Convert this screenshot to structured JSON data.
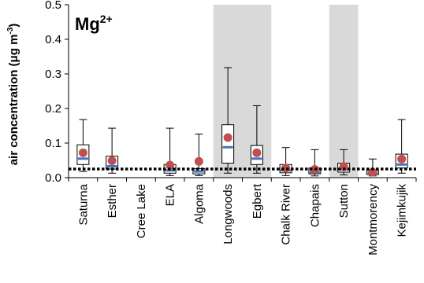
{
  "chart_data": {
    "type": "boxplot",
    "title": {
      "base": "Mg",
      "sup": "2+"
    },
    "ylabel": {
      "text": "air concentration (μg m",
      "sup": "-3",
      "close": ")"
    },
    "ylim": [
      0,
      0.5
    ],
    "yticks": [
      "0.0",
      "0.1",
      "0.2",
      "0.3",
      "0.4",
      "0.5"
    ],
    "ytick_values": [
      0,
      0.1,
      0.2,
      0.3,
      0.4,
      0.5
    ],
    "categories": [
      "Saturna",
      "Esther",
      "Cree Lake",
      "ELA",
      "Algoma",
      "Longwoods",
      "Egbert",
      "Chalk River",
      "Chapais",
      "Sutton",
      "Montmorency",
      "Kejimkujik"
    ],
    "shaded_categories": [
      "Longwoods",
      "Egbert",
      "Sutton"
    ],
    "reference_line": 0.025,
    "series": [
      {
        "name": "Saturna",
        "whisker_low": 0.018,
        "q1": 0.038,
        "median": 0.055,
        "q3": 0.095,
        "whisker_high": 0.168,
        "mean": 0.072
      },
      {
        "name": "Esther",
        "whisker_low": 0.013,
        "q1": 0.025,
        "median": 0.033,
        "q3": 0.062,
        "whisker_high": 0.143,
        "mean": 0.049
      },
      {
        "name": "Cree Lake",
        "whisker_low": null,
        "q1": null,
        "median": null,
        "q3": null,
        "whisker_high": null,
        "mean": null
      },
      {
        "name": "ELA",
        "whisker_low": 0.006,
        "q1": 0.013,
        "median": 0.021,
        "q3": 0.038,
        "whisker_high": 0.143,
        "mean": 0.036
      },
      {
        "name": "Algoma",
        "whisker_low": 0.006,
        "q1": 0.011,
        "median": 0.018,
        "q3": 0.026,
        "whisker_high": 0.126,
        "mean": 0.047
      },
      {
        "name": "Longwoods",
        "whisker_low": 0.013,
        "q1": 0.042,
        "median": 0.088,
        "q3": 0.153,
        "whisker_high": 0.318,
        "mean": 0.116
      },
      {
        "name": "Egbert",
        "whisker_low": 0.013,
        "q1": 0.038,
        "median": 0.055,
        "q3": 0.093,
        "whisker_high": 0.208,
        "mean": 0.072
      },
      {
        "name": "Chalk River",
        "whisker_low": 0.006,
        "q1": 0.014,
        "median": 0.021,
        "q3": 0.038,
        "whisker_high": 0.087,
        "mean": 0.028
      },
      {
        "name": "Chapais",
        "whisker_low": 0.005,
        "q1": 0.011,
        "median": 0.016,
        "q3": 0.028,
        "whisker_high": 0.081,
        "mean": 0.024
      },
      {
        "name": "Sutton",
        "whisker_low": 0.008,
        "q1": 0.016,
        "median": 0.024,
        "q3": 0.042,
        "whisker_high": 0.081,
        "mean": 0.032
      },
      {
        "name": "Montmorency",
        "whisker_low": 0.005,
        "q1": 0.009,
        "median": 0.013,
        "q3": 0.021,
        "whisker_high": 0.054,
        "mean": 0.016
      },
      {
        "name": "Kejimkujik",
        "whisker_low": 0.013,
        "q1": 0.028,
        "median": 0.038,
        "q3": 0.068,
        "whisker_high": 0.168,
        "mean": 0.054
      }
    ],
    "colors": {
      "median": "#4472c4",
      "mean": "#c0504d",
      "shade": "#d9d9d9",
      "box_stroke": "#000000",
      "reference_line": "#000000"
    }
  }
}
